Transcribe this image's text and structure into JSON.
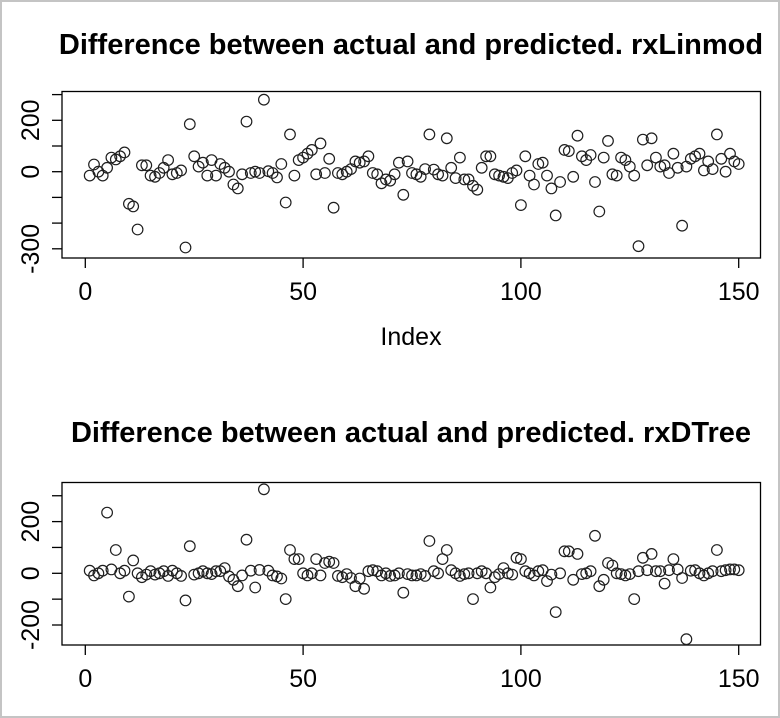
{
  "page": {
    "background_color": "#ffffff",
    "frame_border_color": "#c4c4c4",
    "axis_color": "#000000",
    "marker_color": "#1f1f1f"
  },
  "chart_data": [
    {
      "type": "scatter",
      "title": "Difference between actual and predicted. rxLinmod",
      "xlabel": "Index",
      "ylabel": "",
      "marker": "open-circle",
      "n_points": 150,
      "x_is_index_starting_at": 1,
      "x_ticks": [
        0,
        50,
        100,
        150
      ],
      "y_ticks": [
        -300,
        -200,
        -100,
        0,
        100,
        200,
        300
      ],
      "y_tick_labels_shown": [
        -300,
        0,
        200
      ],
      "xlim": [
        -5,
        155
      ],
      "ylim": [
        -335,
        310
      ],
      "grid": false,
      "values": [
        -15,
        28,
        0,
        -15,
        15,
        55,
        48,
        60,
        75,
        -125,
        -135,
        -225,
        25,
        25,
        -15,
        -20,
        -5,
        15,
        45,
        -10,
        -5,
        5,
        -295,
        185,
        60,
        20,
        35,
        -15,
        45,
        -15,
        30,
        15,
        0,
        -50,
        -65,
        -10,
        195,
        -5,
        0,
        -5,
        280,
        2,
        -5,
        -22,
        30,
        -120,
        145,
        -15,
        45,
        55,
        70,
        85,
        -10,
        110,
        -5,
        50,
        -140,
        -5,
        -10,
        0,
        10,
        40,
        35,
        40,
        60,
        -5,
        -10,
        -45,
        -30,
        -35,
        -10,
        35,
        -90,
        40,
        -5,
        -10,
        -20,
        10,
        145,
        8,
        -10,
        -15,
        130,
        15,
        -25,
        55,
        -30,
        -30,
        -55,
        -70,
        15,
        60,
        60,
        -10,
        -15,
        -20,
        -25,
        -5,
        5,
        -130,
        60,
        -15,
        -50,
        30,
        35,
        -15,
        -65,
        -170,
        -40,
        85,
        80,
        -20,
        140,
        60,
        45,
        65,
        -40,
        -155,
        55,
        120,
        -10,
        -15,
        55,
        45,
        20,
        -15,
        -290,
        125,
        25,
        130,
        55,
        20,
        25,
        -5,
        70,
        15,
        -210,
        20,
        50,
        60,
        70,
        5,
        40,
        10,
        145,
        50,
        0,
        70,
        40,
        30
      ]
    },
    {
      "type": "scatter",
      "title": "Difference between actual and predicted. rxDTree",
      "xlabel": "",
      "ylabel": "",
      "marker": "open-circle",
      "n_points": 150,
      "x_is_index_starting_at": 1,
      "x_ticks": [
        0,
        50,
        100,
        150
      ],
      "y_ticks": [
        -200,
        -100,
        0,
        100,
        200,
        300
      ],
      "y_tick_labels_shown": [
        -200,
        0,
        200
      ],
      "xlim": [
        -5,
        155
      ],
      "ylim": [
        -277,
        350
      ],
      "grid": false,
      "values": [
        10,
        -8,
        0,
        10,
        235,
        15,
        90,
        0,
        10,
        -90,
        50,
        0,
        -15,
        -5,
        8,
        -5,
        0,
        8,
        -10,
        10,
        0,
        -10,
        -105,
        105,
        -5,
        0,
        8,
        0,
        -3,
        8,
        8,
        20,
        -12,
        -25,
        -50,
        -8,
        130,
        10,
        -55,
        13,
        325,
        10,
        -8,
        -12,
        -20,
        -100,
        90,
        55,
        55,
        0,
        -8,
        0,
        55,
        -8,
        40,
        45,
        40,
        -10,
        -15,
        -3,
        -18,
        -50,
        -20,
        -60,
        8,
        12,
        8,
        -8,
        0,
        -10,
        -8,
        0,
        -75,
        -3,
        -8,
        -8,
        -3,
        -10,
        125,
        8,
        0,
        55,
        90,
        12,
        0,
        -10,
        -3,
        0,
        -100,
        0,
        8,
        0,
        -55,
        -15,
        -3,
        20,
        0,
        -5,
        60,
        55,
        8,
        0,
        -8,
        8,
        12,
        -30,
        -5,
        -150,
        0,
        85,
        85,
        -25,
        75,
        -3,
        0,
        8,
        145,
        -50,
        -25,
        40,
        30,
        0,
        -3,
        -8,
        -3,
        -100,
        8,
        60,
        12,
        75,
        8,
        8,
        -40,
        12,
        55,
        15,
        -18,
        -255,
        10,
        12,
        0,
        -8,
        0,
        8,
        90,
        8,
        12,
        15,
        15,
        12
      ]
    }
  ]
}
